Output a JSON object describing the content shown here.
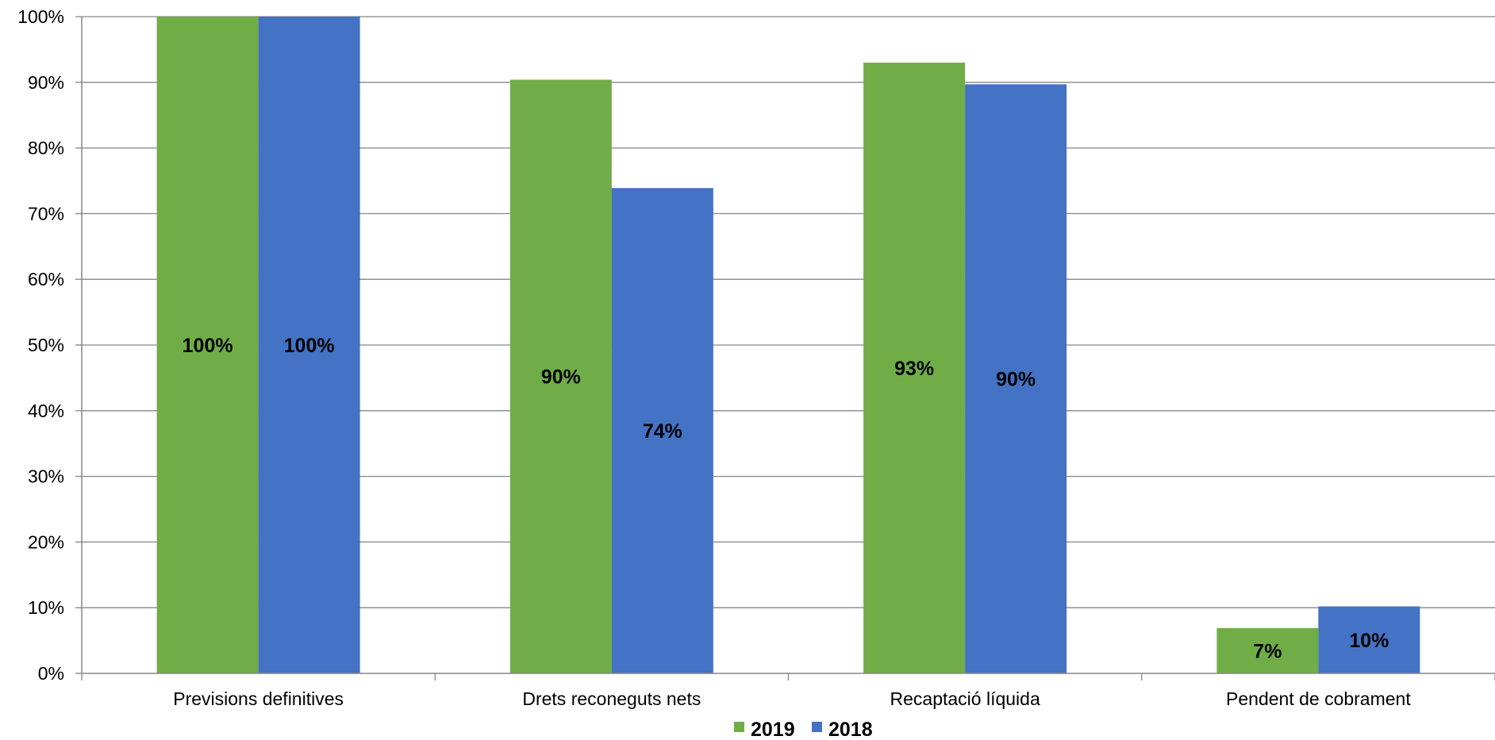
{
  "chart_data": {
    "type": "bar",
    "categories": [
      "Previsions definitives",
      "Drets reconeguts nets",
      "Recaptació líquida",
      "Pendent de cobrament"
    ],
    "series": [
      {
        "name": "2019",
        "color": "#70ad47",
        "values": [
          100,
          90.4,
          93.0,
          6.9
        ],
        "labels": [
          "100%",
          "90%",
          "93%",
          "7%"
        ]
      },
      {
        "name": "2018",
        "color": "#4472c4",
        "values": [
          100,
          73.9,
          89.7,
          10.2
        ],
        "labels": [
          "100%",
          "74%",
          "90%",
          "10%"
        ]
      }
    ],
    "yticks": [
      {
        "value": 0,
        "label": "0%"
      },
      {
        "value": 10,
        "label": "10%"
      },
      {
        "value": 20,
        "label": "20%"
      },
      {
        "value": 30,
        "label": "30%"
      },
      {
        "value": 40,
        "label": "40%"
      },
      {
        "value": 50,
        "label": "50%"
      },
      {
        "value": 60,
        "label": "60%"
      },
      {
        "value": 70,
        "label": "70%"
      },
      {
        "value": 80,
        "label": "80%"
      },
      {
        "value": 90,
        "label": "90%"
      },
      {
        "value": 100,
        "label": "100%"
      }
    ],
    "ylim": [
      0,
      100
    ],
    "title": "",
    "xlabel": "",
    "ylabel": "",
    "grid": true,
    "legend_position": "bottom"
  }
}
